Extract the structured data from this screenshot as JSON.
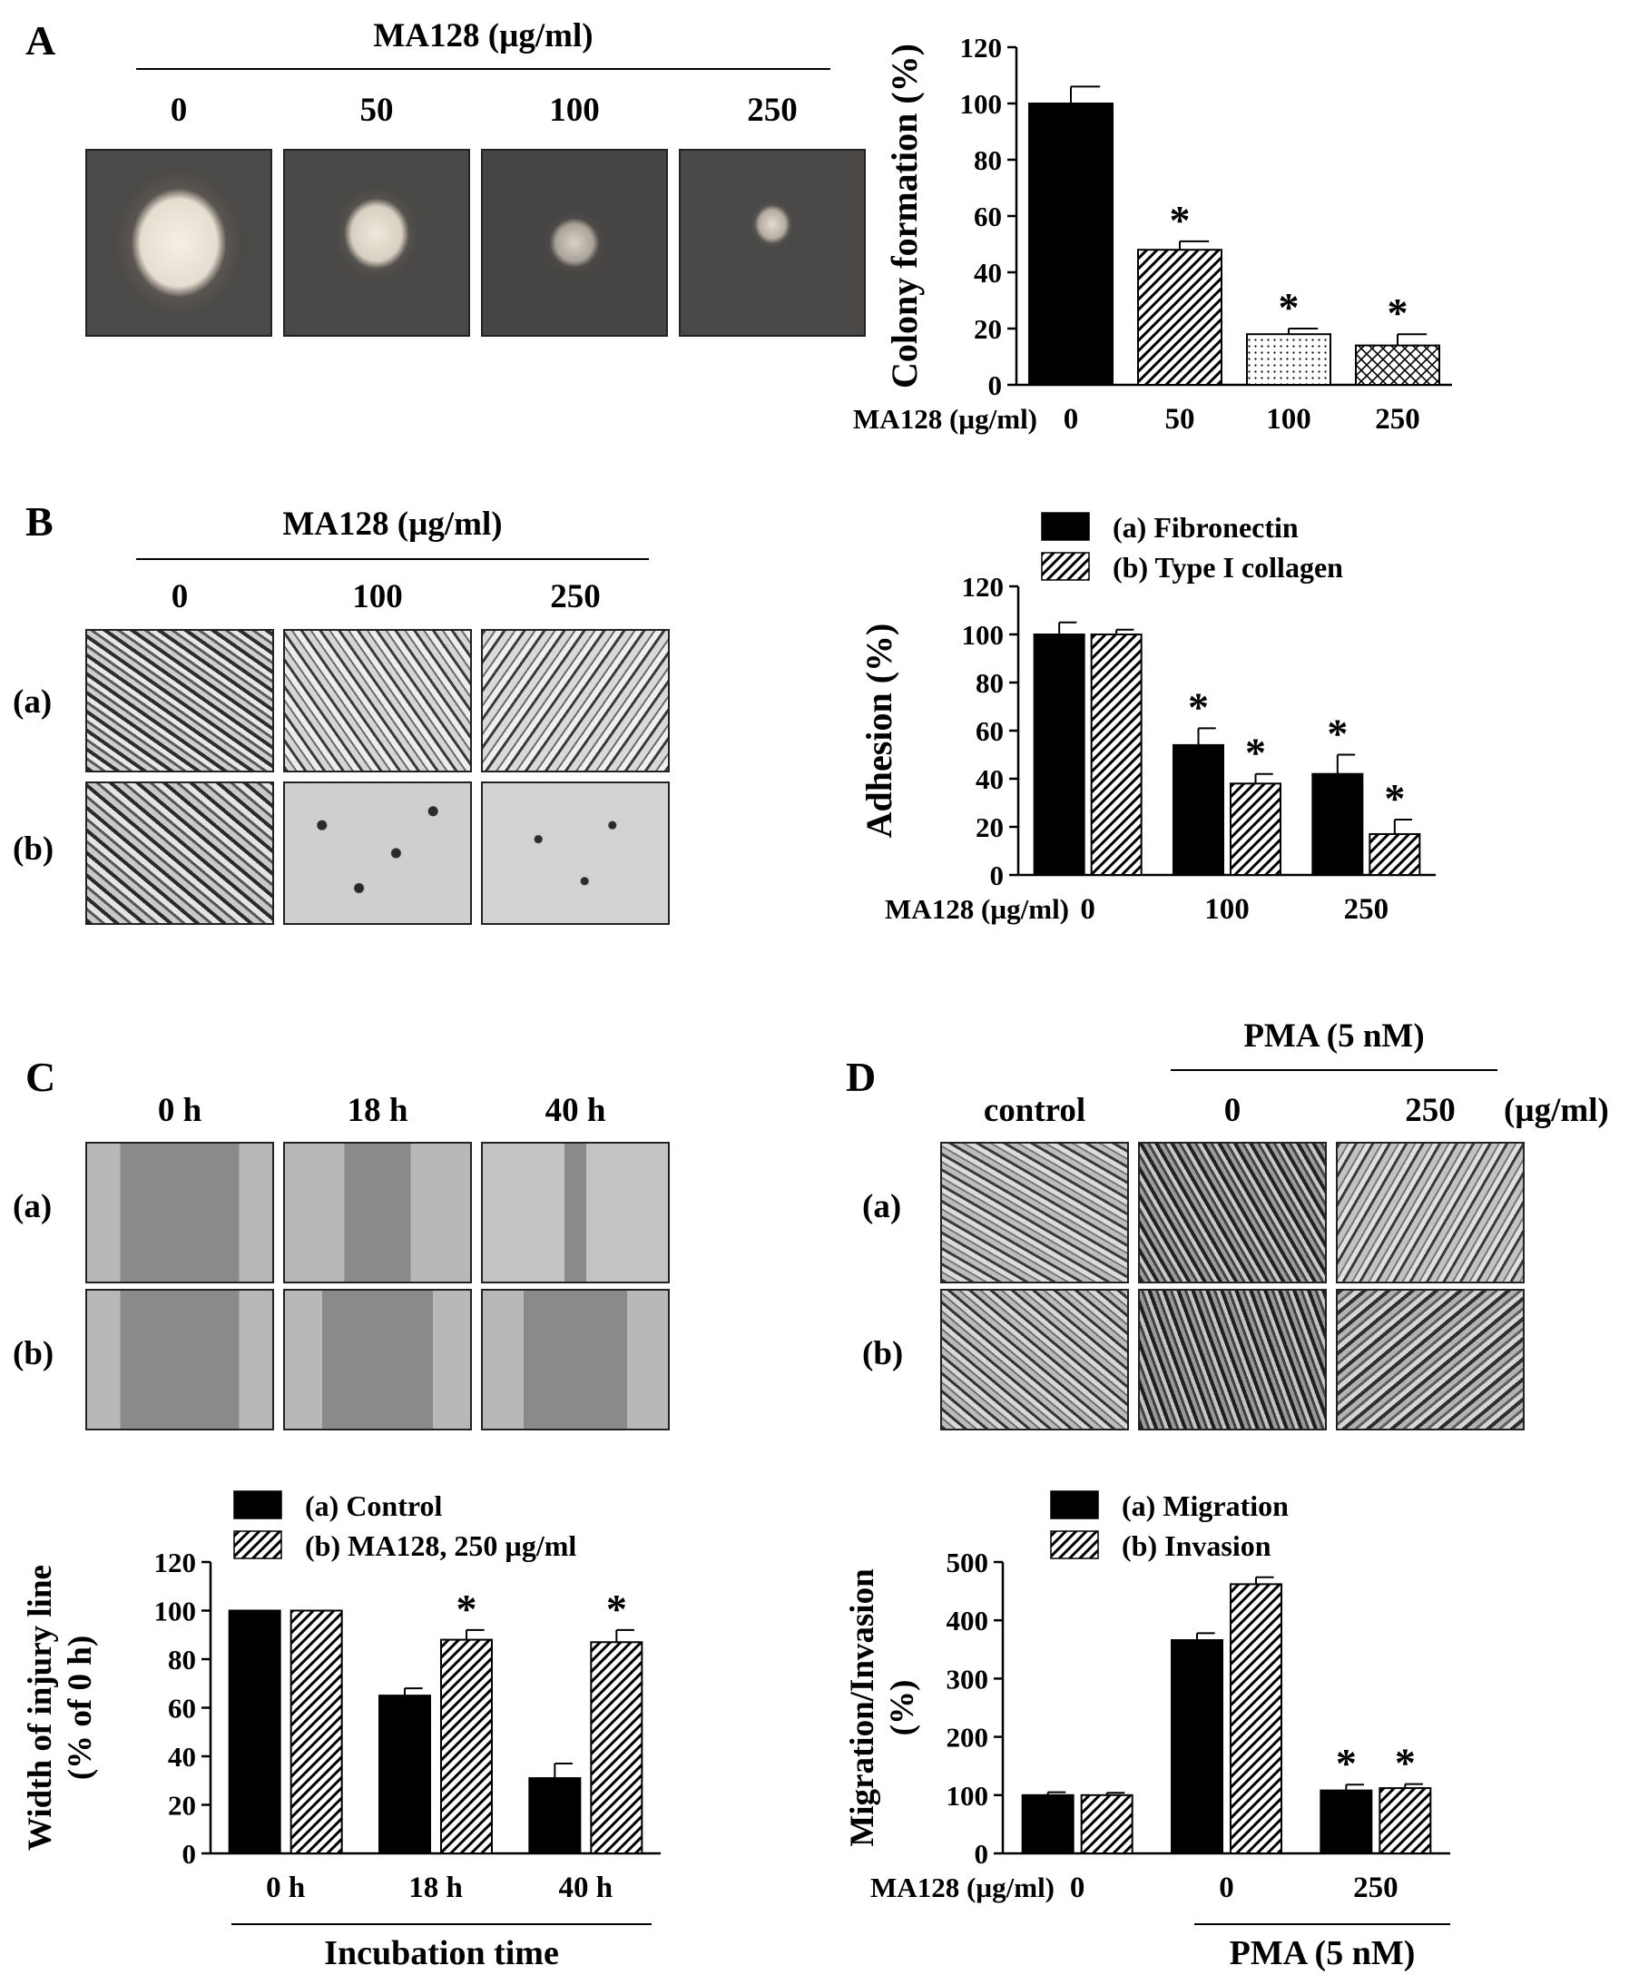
{
  "panels": {
    "A": {
      "letter": "A",
      "header": "MA128 (µg/ml)",
      "columns": [
        "0",
        "50",
        "100",
        "250"
      ]
    },
    "B": {
      "letter": "B",
      "header": "MA128 (µg/ml)",
      "columns": [
        "0",
        "100",
        "250"
      ],
      "rows": [
        "(a)",
        "(b)"
      ]
    },
    "C": {
      "letter": "C",
      "columns": [
        "0 h",
        "18 h",
        "40 h"
      ],
      "rows": [
        "(a)",
        "(b)"
      ]
    },
    "D": {
      "letter": "D",
      "header": "PMA (5 nM)",
      "columns": [
        "control",
        "0",
        "250"
      ],
      "unit": "(µg/ml)",
      "rows": [
        "(a)",
        "(b)"
      ]
    }
  },
  "chart_data": [
    {
      "id": "A",
      "type": "bar",
      "ylabel": "Colony formation (%)",
      "xprefix": "MA128 (µg/ml)",
      "categories": [
        "0",
        "50",
        "100",
        "250"
      ],
      "ylim": [
        0,
        120
      ],
      "yticks": [
        "0",
        "20",
        "40",
        "60",
        "80",
        "100",
        "120"
      ],
      "series": [
        {
          "values": [
            100,
            48,
            18,
            14
          ],
          "errors": [
            6,
            3,
            2,
            4
          ],
          "patterns": [
            "solid",
            "hatch",
            "dots",
            "cross"
          ]
        }
      ],
      "annotations": [
        "",
        "*",
        "*",
        "*"
      ]
    },
    {
      "id": "B",
      "type": "bar",
      "ylabel": "Adhesion (%)",
      "xprefix": "MA128 (µg/ml)",
      "categories": [
        "0",
        "100",
        "250"
      ],
      "ylim": [
        0,
        120
      ],
      "yticks": [
        "0",
        "20",
        "40",
        "60",
        "80",
        "100",
        "120"
      ],
      "legend": "top",
      "series": [
        {
          "name": "(a) Fibronectin",
          "pattern": "solid",
          "values": [
            100,
            54,
            42
          ],
          "errors": [
            5,
            7,
            8
          ],
          "annotations": [
            "",
            "*",
            "*"
          ]
        },
        {
          "name": "(b) Type I collagen",
          "pattern": "hatch",
          "values": [
            100,
            38,
            17
          ],
          "errors": [
            2,
            4,
            6
          ],
          "annotations": [
            "",
            "*",
            "*"
          ]
        }
      ]
    },
    {
      "id": "C",
      "type": "bar",
      "ylabel": "Width of injury line",
      "ylabel2": "(% of 0 h)",
      "xlabel": "Incubation time",
      "categories": [
        "0 h",
        "18 h",
        "40 h"
      ],
      "ylim": [
        0,
        120
      ],
      "yticks": [
        "0",
        "20",
        "40",
        "60",
        "80",
        "100",
        "120"
      ],
      "legend": "top",
      "series": [
        {
          "name": "(a) Control",
          "pattern": "solid",
          "values": [
            100,
            65,
            31
          ],
          "errors": [
            0,
            3,
            6
          ],
          "annotations": [
            "",
            "",
            ""
          ]
        },
        {
          "name": "(b) MA128, 250 µg/ml",
          "pattern": "hatch",
          "values": [
            100,
            88,
            87
          ],
          "errors": [
            0,
            4,
            5
          ],
          "annotations": [
            "",
            "*",
            "*"
          ]
        }
      ]
    },
    {
      "id": "D",
      "type": "bar",
      "ylabel": "Migration/Invasion",
      "ylabel2": "(%)",
      "xprefix": "MA128 (µg/ml)",
      "xlabel": "PMA (5 nM)",
      "categories": [
        "0",
        "0",
        "250"
      ],
      "ylim": [
        0,
        500
      ],
      "yticks": [
        "0",
        "100",
        "200",
        "300",
        "400",
        "500"
      ],
      "legend": "top",
      "series": [
        {
          "name": "(a) Migration",
          "pattern": "solid",
          "values": [
            100,
            366,
            108
          ],
          "errors": [
            5,
            12,
            10
          ],
          "annotations": [
            "",
            "",
            "*"
          ]
        },
        {
          "name": "(b) Invasion",
          "pattern": "hatch",
          "values": [
            100,
            462,
            112
          ],
          "errors": [
            4,
            12,
            7
          ],
          "annotations": [
            "",
            "",
            "*"
          ]
        }
      ]
    }
  ]
}
